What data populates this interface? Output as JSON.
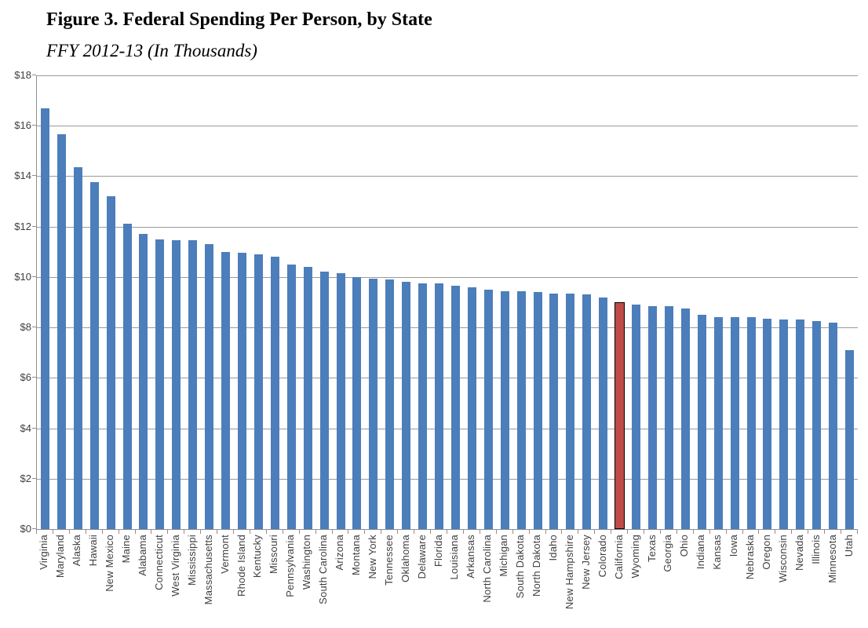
{
  "header": {
    "title": "Figure 3. Federal Spending Per Person, by State",
    "subtitle": "FFY 2012-13 (In Thousands)"
  },
  "colors": {
    "bar": "#4C7EBB",
    "highlight_bar": "#BE4B48",
    "highlight_border": "#000000",
    "gridline": "#9A9A9A",
    "axis": "#8F8F8F",
    "label_text": "#3F3F3F",
    "title_text": "#000000",
    "background": "#FFFFFF"
  },
  "chart_data": {
    "type": "bar",
    "title": "Figure 3. Federal Spending Per Person, by State",
    "subtitle": "FFY 2012-13 (In Thousands)",
    "xlabel": "",
    "ylabel": "",
    "ylim": [
      0,
      18
    ],
    "grid": "horizontal",
    "legend": "none",
    "highlighted_category": "California",
    "yticks": [
      {
        "value": 0,
        "label": "$0"
      },
      {
        "value": 2,
        "label": "$2"
      },
      {
        "value": 4,
        "label": "$4"
      },
      {
        "value": 6,
        "label": "$6"
      },
      {
        "value": 8,
        "label": "$8"
      },
      {
        "value": 10,
        "label": "$10"
      },
      {
        "value": 12,
        "label": "$12"
      },
      {
        "value": 14,
        "label": "$14"
      },
      {
        "value": 16,
        "label": "$16"
      },
      {
        "value": 18,
        "label": "$18"
      }
    ],
    "categories": [
      "Virginia",
      "Maryland",
      "Alaska",
      "Hawaii",
      "New Mexico",
      "Maine",
      "Alabama",
      "Connecticut",
      "West Virginia",
      "Mississippi",
      "Massachusetts",
      "Vermont",
      "Rhode Island",
      "Kentucky",
      "Missouri",
      "Pennsylvania",
      "Washington",
      "South Carolina",
      "Arizona",
      "Montana",
      "New York",
      "Tennessee",
      "Oklahoma",
      "Delaware",
      "Florida",
      "Louisiana",
      "Arkansas",
      "North Carolina",
      "Michigan",
      "South Dakota",
      "North Dakota",
      "Idaho",
      "New Hampshire",
      "New Jersey",
      "Colorado",
      "California",
      "Wyoming",
      "Texas",
      "Georgia",
      "Ohio",
      "Indiana",
      "Kansas",
      "Iowa",
      "Nebraska",
      "Oregon",
      "Wisconsin",
      "Nevada",
      "Illinois",
      "Minnesota",
      "Utah"
    ],
    "values": [
      16.7,
      15.65,
      14.35,
      13.75,
      13.2,
      12.1,
      11.7,
      11.5,
      11.45,
      11.45,
      11.3,
      11.0,
      10.95,
      10.9,
      10.8,
      10.5,
      10.4,
      10.2,
      10.15,
      10.0,
      9.95,
      9.9,
      9.8,
      9.75,
      9.75,
      9.65,
      9.6,
      9.5,
      9.45,
      9.45,
      9.4,
      9.35,
      9.35,
      9.3,
      9.2,
      9.0,
      8.9,
      8.85,
      8.85,
      8.75,
      8.5,
      8.4,
      8.4,
      8.4,
      8.35,
      8.3,
      8.3,
      8.25,
      8.2,
      7.1
    ]
  }
}
